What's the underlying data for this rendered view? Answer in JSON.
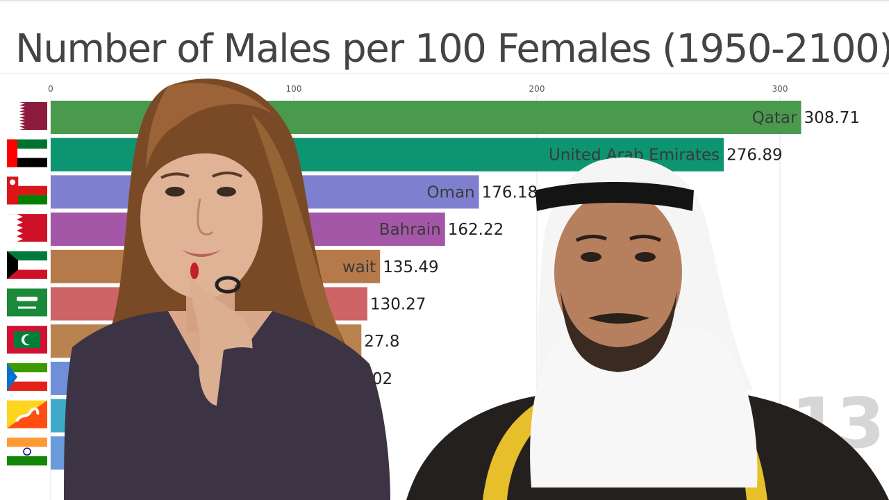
{
  "chart_data": {
    "type": "bar",
    "orientation": "horizontal",
    "title": "Number of Males per 100 Females (1950-2100)",
    "xlim": [
      0,
      320
    ],
    "x_ticks": [
      0,
      100,
      200,
      300
    ],
    "grid": true,
    "year_label": "13",
    "bars": [
      {
        "name": "Qatar",
        "value": 308.71,
        "label": "308.71",
        "color": "#4a9a4e",
        "flag": "qatar-flag"
      },
      {
        "name": "United Arab Emirates",
        "value": 276.89,
        "label": "276.89",
        "color": "#0d9471",
        "flag": "uae-flag"
      },
      {
        "name": "Oman",
        "value": 176.18,
        "label": "176.18",
        "color": "#7f7fd0",
        "flag": "oman-flag"
      },
      {
        "name": "Bahrain",
        "value": 162.22,
        "label": "162.22",
        "color": "#a557a7",
        "flag": "bahrain-flag"
      },
      {
        "name": "Kuwait",
        "value": 135.49,
        "label": "135.49",
        "visible_name": "wait",
        "color": "#b5794a",
        "flag": "kuwait-flag"
      },
      {
        "name": "",
        "value": 130.27,
        "label": "130.27",
        "color": "#cf6466",
        "flag": "saudi-arabia-flag"
      },
      {
        "name": "",
        "value": 127.8,
        "label": "27.8",
        "color": "#b8834f",
        "flag": "maldives-flag"
      },
      {
        "name": "",
        "value": 129.02,
        "label": ".02",
        "color": "#6f8fdb",
        "flag": "equatorial-guinea-flag"
      },
      {
        "name": "",
        "value": 110,
        "label": "",
        "color": "#3eaac8",
        "flag": "bhutan-flag"
      },
      {
        "name": "",
        "value": 108,
        "label": "",
        "color": "#6a9bdc",
        "flag": "india-flag"
      }
    ]
  }
}
